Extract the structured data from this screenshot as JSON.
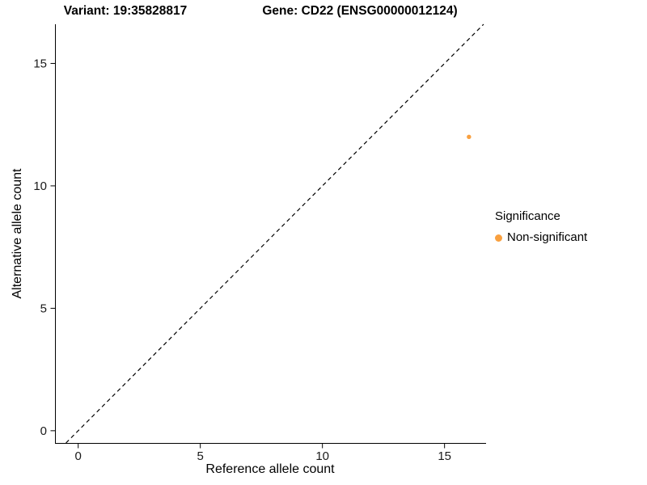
{
  "chart_data": {
    "type": "scatter",
    "title_left": "Variant: 19:35828817",
    "title_right": "Gene: CD22 (ENSG00000012124)",
    "xlabel": "Reference allele count",
    "ylabel": "Alternative allele count",
    "xlim": [
      -0.95,
      16.7
    ],
    "ylim": [
      -0.5,
      16.6
    ],
    "xticks": [
      0,
      5,
      10,
      15
    ],
    "yticks": [
      0,
      5,
      10,
      15
    ],
    "grid": false,
    "identity_line": {
      "equation": "y = x",
      "style": "dashed",
      "color": "#000000"
    },
    "points": [
      {
        "x": 16,
        "y": 12,
        "significance": "Non-significant"
      }
    ],
    "legend": {
      "title": "Significance",
      "position": "right",
      "entries": [
        {
          "label": "Non-significant",
          "color": "#F9A03F"
        }
      ]
    }
  }
}
